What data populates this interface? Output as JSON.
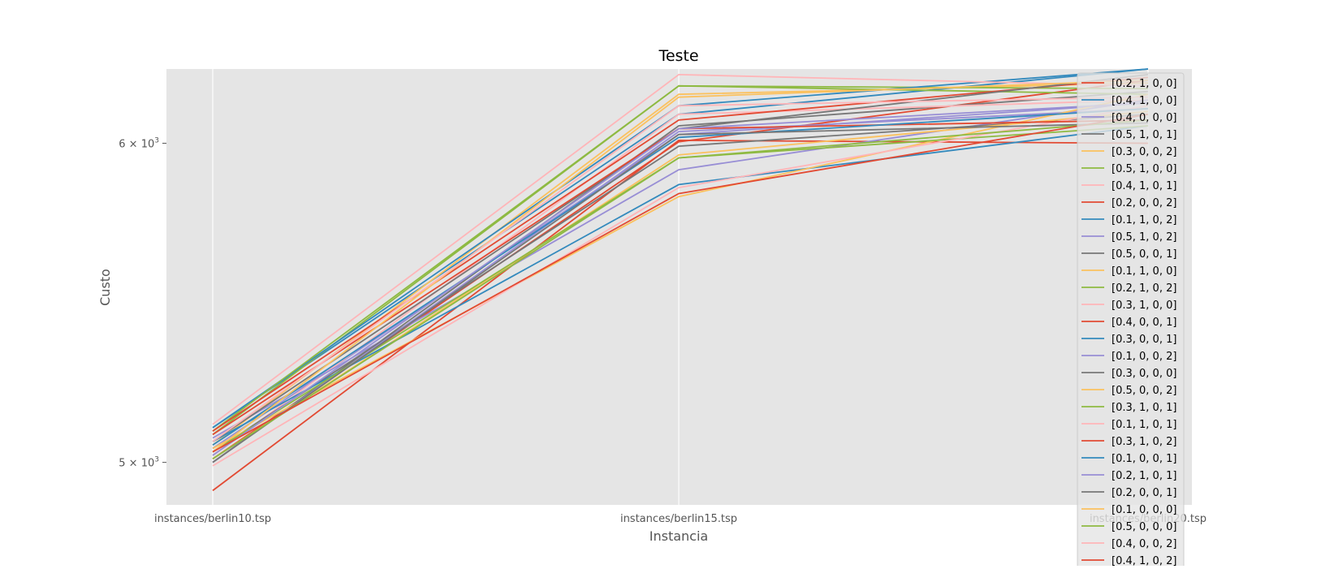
{
  "chart_data": {
    "type": "line",
    "title": "Teste",
    "xlabel": "Instancia",
    "ylabel": "Custo",
    "y_scale": "log",
    "ylim": [
      4880,
      6260
    ],
    "grid": true,
    "legend_position": "right",
    "categories": [
      "instances/berlin10.tsp",
      "instances/berlin15.tsp",
      "instances/berlin20.tsp"
    ],
    "yticks": [
      {
        "value": 5000,
        "label_base": "5 × 10",
        "label_exp": "3"
      },
      {
        "value": 6000,
        "label_base": "6 × 10",
        "label_exp": "3"
      }
    ],
    "series": [
      {
        "name": "[0.2, 1, 0, 0]",
        "color": "#E24A33",
        "values": [
          5010,
          6005,
          6220
        ]
      },
      {
        "name": "[0.4, 1, 0, 0]",
        "color": "#348ABD",
        "values": [
          5100,
          6100,
          6260
        ]
      },
      {
        "name": "[0.4, 0, 0, 0]",
        "color": "#988ED5",
        "values": [
          5040,
          6030,
          6140
        ]
      },
      {
        "name": "[0.5, 1, 0, 1]",
        "color": "#777777",
        "values": [
          5000,
          6060,
          6180
        ]
      },
      {
        "name": "[0.3, 0, 0, 2]",
        "color": "#FBC15E",
        "values": [
          5050,
          6170,
          6210
        ]
      },
      {
        "name": "[0.5, 1, 0, 0]",
        "color": "#8EBA42",
        "values": [
          5080,
          6200,
          6190
        ]
      },
      {
        "name": "[0.4, 1, 0, 1]",
        "color": "#FFB5B8",
        "values": [
          5020,
          6100,
          6150
        ]
      },
      {
        "name": "[0.2, 0, 0, 2]",
        "color": "#E24A33",
        "values": [
          4920,
          6010,
          6000
        ]
      },
      {
        "name": "[0.1, 1, 0, 2]",
        "color": "#348ABD",
        "values": [
          5100,
          6130,
          6260
        ]
      },
      {
        "name": "[0.5, 1, 0, 2]",
        "color": "#988ED5",
        "values": [
          5070,
          5910,
          6150
        ]
      },
      {
        "name": "[0.5, 0, 0, 1]",
        "color": "#777777",
        "values": [
          5030,
          5990,
          6100
        ]
      },
      {
        "name": "[0.1, 1, 0, 0]",
        "color": "#FBC15E",
        "values": [
          5010,
          5960,
          6110
        ]
      },
      {
        "name": "[0.2, 1, 0, 2]",
        "color": "#8EBA42",
        "values": [
          5090,
          6200,
          6170
        ]
      },
      {
        "name": "[0.3, 1, 0, 0]",
        "color": "#FFB5B8",
        "values": [
          5110,
          6240,
          6200
        ]
      },
      {
        "name": "[0.4, 0, 0, 1]",
        "color": "#E24A33",
        "values": [
          5090,
          6080,
          6230
        ]
      },
      {
        "name": "[0.3, 0, 0, 1]",
        "color": "#348ABD",
        "values": [
          5060,
          5860,
          6060
        ]
      },
      {
        "name": "[0.1, 0, 0, 2]",
        "color": "#988ED5",
        "values": [
          5000,
          6040,
          6120
        ]
      },
      {
        "name": "[0.3, 0, 0, 0]",
        "color": "#777777",
        "values": [
          5060,
          6050,
          6240
        ]
      },
      {
        "name": "[0.5, 0, 0, 2]",
        "color": "#FBC15E",
        "values": [
          5040,
          5820,
          6170
        ]
      },
      {
        "name": "[0.3, 1, 0, 1]",
        "color": "#8EBA42",
        "values": [
          5030,
          5950,
          6060
        ]
      },
      {
        "name": "[0.1, 1, 0, 1]",
        "color": "#FFB5B8",
        "values": [
          4990,
          5850,
          6130
        ]
      },
      {
        "name": "[0.3, 1, 0, 2]",
        "color": "#E24A33",
        "values": [
          5080,
          6050,
          6080
        ]
      },
      {
        "name": "[0.1, 0, 0, 1]",
        "color": "#348ABD",
        "values": [
          5050,
          6020,
          6120
        ]
      },
      {
        "name": "[0.2, 1, 0, 1]",
        "color": "#988ED5",
        "values": [
          5020,
          6050,
          6140
        ]
      },
      {
        "name": "[0.2, 0, 0, 1]",
        "color": "#777777",
        "values": [
          5000,
          6030,
          6070
        ]
      },
      {
        "name": "[0.1, 0, 0, 0]",
        "color": "#FBC15E",
        "values": [
          5030,
          6160,
          6220
        ]
      },
      {
        "name": "[0.5, 0, 0, 0]",
        "color": "#8EBA42",
        "values": [
          5010,
          5950,
          6080
        ]
      },
      {
        "name": "[0.4, 0, 0, 2]",
        "color": "#FFB5B8",
        "values": [
          5060,
          6130,
          6160
        ]
      },
      {
        "name": "[0.4, 1, 0, 2]",
        "color": "#E24A33",
        "values": [
          5030,
          5830,
          6100
        ]
      }
    ]
  }
}
